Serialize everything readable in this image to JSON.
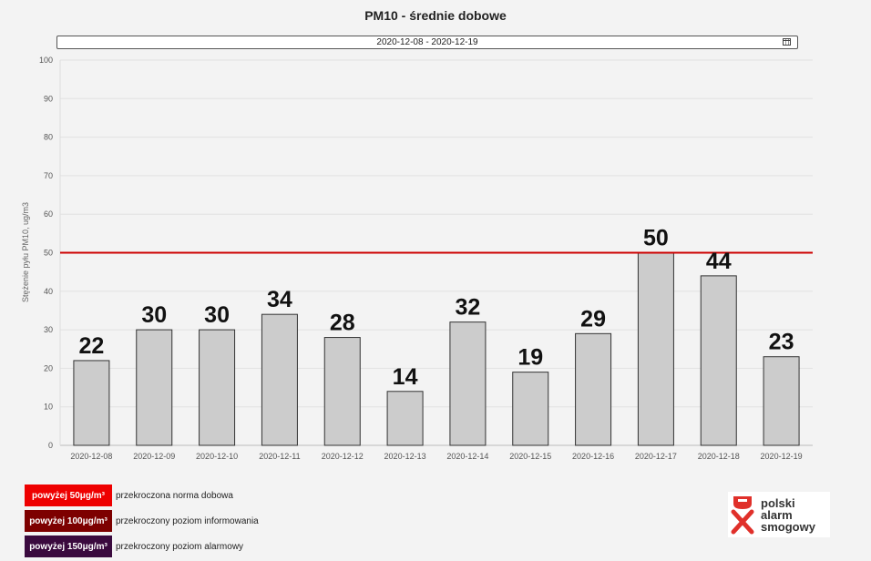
{
  "header": {
    "title": "PM10 - średnie dobowe"
  },
  "date_picker": {
    "value": "2020-12-08  -  2020-12-19",
    "icon": "calendar-icon"
  },
  "chart_data": {
    "type": "bar",
    "title": "PM10 - średnie dobowe",
    "xlabel": "",
    "ylabel": "Stężenie pyłu PM10, ug/m3",
    "ylim": [
      0,
      100
    ],
    "yticks": [
      0,
      10,
      20,
      30,
      40,
      50,
      60,
      70,
      80,
      90,
      100
    ],
    "categories": [
      "2020-12-08",
      "2020-12-09",
      "2020-12-10",
      "2020-12-11",
      "2020-12-12",
      "2020-12-13",
      "2020-12-14",
      "2020-12-15",
      "2020-12-16",
      "2020-12-17",
      "2020-12-18",
      "2020-12-19"
    ],
    "values": [
      22,
      30,
      30,
      34,
      28,
      14,
      32,
      19,
      29,
      50,
      44,
      23
    ],
    "threshold": 50,
    "grid": true,
    "colors": {
      "bar": "#cccccc",
      "bar_border": "#333333",
      "threshold": "#cc0000",
      "grid": "#e2e2e2"
    }
  },
  "legend": [
    {
      "label": "powyżej 50μg/m³",
      "text": "przekroczona norma dobowa",
      "color": "#ee0000"
    },
    {
      "label": "powyżej 100μg/m³",
      "text": "przekroczony poziom informowania",
      "color": "#7d0000"
    },
    {
      "label": "powyżej 150μg/m³",
      "text": "przekroczony poziom alarmowy",
      "color": "#3a0a3e"
    }
  ],
  "logo": {
    "line1": "polski",
    "line2": "alarm",
    "line3": "smogowy",
    "color": "#e0302a"
  }
}
